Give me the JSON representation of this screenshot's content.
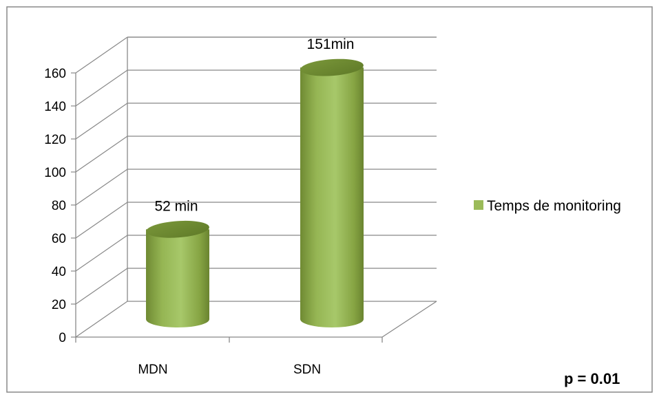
{
  "chart_data": {
    "type": "bar",
    "style": "3d-cylinder",
    "categories": [
      "MDN",
      "SDN"
    ],
    "series": [
      {
        "name": "Temps de monitoring",
        "values": [
          52,
          151
        ],
        "color": "#9bbb59"
      }
    ],
    "data_labels": [
      "52 min",
      "151min"
    ],
    "yticks": [
      "0",
      "20",
      "40",
      "60",
      "80",
      "100",
      "120",
      "140",
      "160"
    ],
    "ylim": [
      0,
      160
    ],
    "grid": true,
    "legend_position": "right",
    "annotation": "p = 0.01"
  }
}
